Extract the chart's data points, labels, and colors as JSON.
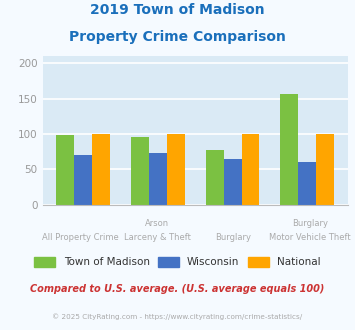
{
  "title_line1": "2019 Town of Madison",
  "title_line2": "Property Crime Comparison",
  "title_color": "#1a6fbb",
  "series": {
    "Town of Madison": [
      99,
      95,
      77,
      157
    ],
    "Wisconsin": [
      70,
      73,
      65,
      60
    ],
    "National": [
      100,
      100,
      100,
      100
    ]
  },
  "colors": {
    "Town of Madison": "#7bc142",
    "Wisconsin": "#4472c4",
    "National": "#ffa500"
  },
  "group_labels_bottom": [
    "All Property Crime",
    "Larceny & Theft",
    "Burglary",
    "Motor Vehicle Theft"
  ],
  "group_labels_top": [
    "",
    "Arson",
    "",
    "Burglary"
  ],
  "ylim": [
    0,
    210
  ],
  "yticks": [
    0,
    50,
    100,
    150,
    200
  ],
  "plot_bg_color": "#daeaf5",
  "fig_bg_color": "#f5faff",
  "grid_color": "#ffffff",
  "tick_label_color": "#999999",
  "xlabel_color": "#aaaaaa",
  "footer_text1": "Compared to U.S. average. (U.S. average equals 100)",
  "footer_text2": "© 2025 CityRating.com - https://www.cityrating.com/crime-statistics/",
  "footer_color1": "#cc3333",
  "footer_color2": "#aaaaaa"
}
